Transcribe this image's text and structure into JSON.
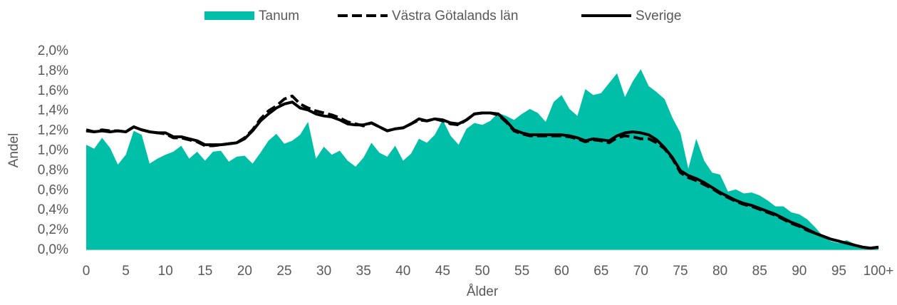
{
  "chart_data": {
    "type": "area-line",
    "x_label": "Ålder",
    "y_label": "Andel",
    "categories": [
      "0",
      null,
      null,
      null,
      null,
      "5",
      null,
      null,
      null,
      null,
      "10",
      null,
      null,
      null,
      null,
      "15",
      null,
      null,
      null,
      null,
      "20",
      null,
      null,
      null,
      null,
      "25",
      null,
      null,
      null,
      null,
      "30",
      null,
      null,
      null,
      null,
      "35",
      null,
      null,
      null,
      null,
      "40",
      null,
      null,
      null,
      null,
      "45",
      null,
      null,
      null,
      null,
      "50",
      null,
      null,
      null,
      null,
      "55",
      null,
      null,
      null,
      null,
      "60",
      null,
      null,
      null,
      null,
      "65",
      null,
      null,
      null,
      null,
      "70",
      null,
      null,
      null,
      null,
      "75",
      null,
      null,
      null,
      null,
      "80",
      null,
      null,
      null,
      null,
      "85",
      null,
      null,
      null,
      null,
      "90",
      null,
      null,
      null,
      null,
      "95",
      null,
      null,
      null,
      null,
      "100+"
    ],
    "ylim": [
      0,
      2.0
    ],
    "yticks": [
      {
        "value": 0,
        "label": "0,0%"
      },
      {
        "value": 0.2,
        "label": "0,2%"
      },
      {
        "value": 0.4,
        "label": "0,4%"
      },
      {
        "value": 0.6,
        "label": "0,6%"
      },
      {
        "value": 0.8,
        "label": "0,8%"
      },
      {
        "value": 1.0,
        "label": "1,0%"
      },
      {
        "value": 1.2,
        "label": "1,2%"
      },
      {
        "value": 1.4,
        "label": "1,4%"
      },
      {
        "value": 1.6,
        "label": "1,6%"
      },
      {
        "value": 1.8,
        "label": "1,8%"
      },
      {
        "value": 2.0,
        "label": "2,0%"
      }
    ],
    "legend": "top",
    "series": [
      {
        "name": "Tanum",
        "kind": "area",
        "color": "#00bfa8",
        "values": [
          1.06,
          1.02,
          1.13,
          1.03,
          0.86,
          0.96,
          1.2,
          1.16,
          0.87,
          0.92,
          0.96,
          0.99,
          1.05,
          0.92,
          0.99,
          0.9,
          0.99,
          1.0,
          0.89,
          0.94,
          0.95,
          0.87,
          0.98,
          1.1,
          1.17,
          1.07,
          1.1,
          1.16,
          1.29,
          0.92,
          1.04,
          0.96,
          1.0,
          0.9,
          0.84,
          0.93,
          1.08,
          0.98,
          0.94,
          1.05,
          0.9,
          0.97,
          1.12,
          1.08,
          1.16,
          1.31,
          1.15,
          1.06,
          1.22,
          1.28,
          1.26,
          1.3,
          1.38,
          1.35,
          1.31,
          1.37,
          1.42,
          1.38,
          1.29,
          1.49,
          1.56,
          1.42,
          1.35,
          1.62,
          1.56,
          1.58,
          1.68,
          1.78,
          1.54,
          1.7,
          1.82,
          1.65,
          1.59,
          1.52,
          1.33,
          1.18,
          0.82,
          1.12,
          0.9,
          0.78,
          0.76,
          0.59,
          0.61,
          0.57,
          0.58,
          0.55,
          0.5,
          0.44,
          0.44,
          0.38,
          0.36,
          0.31,
          0.23,
          0.14,
          0.09,
          0.07,
          0.1,
          0.06,
          0.03,
          0.02,
          0.03
        ]
      },
      {
        "name": "Västra Götalands län",
        "kind": "dashed",
        "color": "#000000",
        "values": [
          1.21,
          1.19,
          1.21,
          1.2,
          1.2,
          1.19,
          1.24,
          1.21,
          1.19,
          1.18,
          1.17,
          1.13,
          1.13,
          1.11,
          1.09,
          1.05,
          1.05,
          1.06,
          1.07,
          1.08,
          1.13,
          1.21,
          1.32,
          1.4,
          1.45,
          1.52,
          1.55,
          1.47,
          1.43,
          1.4,
          1.38,
          1.36,
          1.33,
          1.29,
          1.27,
          1.25,
          1.28,
          1.24,
          1.2,
          1.22,
          1.23,
          1.27,
          1.31,
          1.3,
          1.32,
          1.3,
          1.27,
          1.26,
          1.31,
          1.37,
          1.38,
          1.38,
          1.36,
          1.29,
          1.2,
          1.17,
          1.15,
          1.15,
          1.15,
          1.15,
          1.15,
          1.14,
          1.12,
          1.09,
          1.11,
          1.1,
          1.08,
          1.13,
          1.15,
          1.14,
          1.12,
          1.12,
          1.08,
          1.02,
          0.92,
          0.78,
          0.73,
          0.7,
          0.66,
          0.62,
          0.57,
          0.53,
          0.49,
          0.46,
          0.44,
          0.41,
          0.38,
          0.35,
          0.31,
          0.27,
          0.24,
          0.2,
          0.17,
          0.14,
          0.11,
          0.09,
          0.07,
          0.05,
          0.03,
          0.02,
          0.03
        ]
      },
      {
        "name": "Sverige",
        "kind": "solid",
        "color": "#000000",
        "values": [
          1.2,
          1.19,
          1.2,
          1.19,
          1.2,
          1.19,
          1.24,
          1.21,
          1.19,
          1.18,
          1.18,
          1.14,
          1.14,
          1.12,
          1.1,
          1.06,
          1.06,
          1.06,
          1.07,
          1.08,
          1.12,
          1.2,
          1.3,
          1.37,
          1.43,
          1.47,
          1.49,
          1.43,
          1.41,
          1.37,
          1.35,
          1.34,
          1.31,
          1.27,
          1.26,
          1.26,
          1.28,
          1.24,
          1.2,
          1.22,
          1.23,
          1.27,
          1.32,
          1.3,
          1.32,
          1.31,
          1.28,
          1.27,
          1.31,
          1.37,
          1.38,
          1.38,
          1.37,
          1.3,
          1.21,
          1.18,
          1.16,
          1.16,
          1.16,
          1.16,
          1.16,
          1.15,
          1.13,
          1.1,
          1.12,
          1.11,
          1.1,
          1.15,
          1.18,
          1.19,
          1.18,
          1.16,
          1.11,
          1.03,
          0.93,
          0.8,
          0.75,
          0.72,
          0.68,
          0.63,
          0.58,
          0.54,
          0.5,
          0.47,
          0.45,
          0.42,
          0.39,
          0.36,
          0.32,
          0.28,
          0.25,
          0.21,
          0.17,
          0.14,
          0.11,
          0.09,
          0.07,
          0.05,
          0.03,
          0.02,
          0.03
        ]
      }
    ]
  }
}
